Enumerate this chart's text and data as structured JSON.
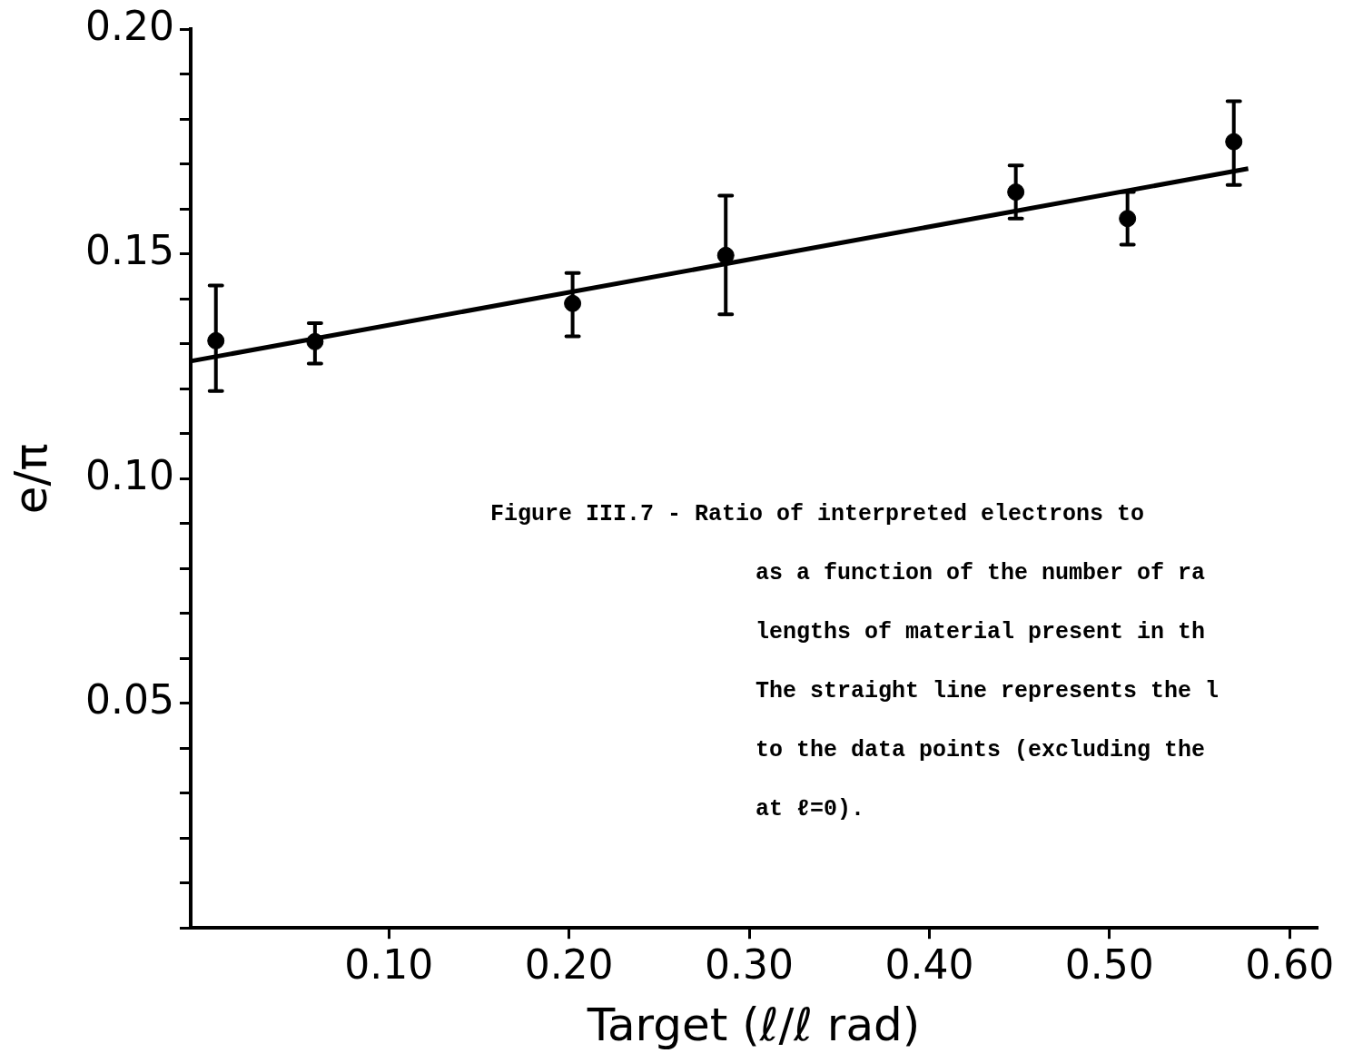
{
  "chart_data": {
    "type": "scatter",
    "xlabel": "Target (ℓ/ℓ rad)",
    "ylabel": "e/π",
    "xlim": [
      -0.01,
      0.615
    ],
    "ylim": [
      0,
      0.2
    ],
    "xticks": [
      {
        "value": 0.1,
        "label": "0.10"
      },
      {
        "value": 0.2,
        "label": "0.20"
      },
      {
        "value": 0.3,
        "label": "0.30"
      },
      {
        "value": 0.4,
        "label": "0.40"
      },
      {
        "value": 0.5,
        "label": "0.50"
      },
      {
        "value": 0.6,
        "label": "0.60"
      }
    ],
    "yticks": [
      {
        "value": 0,
        "label": null
      },
      {
        "value": 0.01,
        "label": null
      },
      {
        "value": 0.02,
        "label": null
      },
      {
        "value": 0.03,
        "label": null
      },
      {
        "value": 0.04,
        "label": null
      },
      {
        "value": 0.05,
        "label": "0.05"
      },
      {
        "value": 0.06,
        "label": null
      },
      {
        "value": 0.07,
        "label": null
      },
      {
        "value": 0.08,
        "label": null
      },
      {
        "value": 0.09,
        "label": null
      },
      {
        "value": 0.1,
        "label": "0.10"
      },
      {
        "value": 0.11,
        "label": null
      },
      {
        "value": 0.12,
        "label": null
      },
      {
        "value": 0.13,
        "label": null
      },
      {
        "value": 0.14,
        "label": null
      },
      {
        "value": 0.15,
        "label": "0.15"
      },
      {
        "value": 0.16,
        "label": null
      },
      {
        "value": 0.17,
        "label": null
      },
      {
        "value": 0.18,
        "label": null
      },
      {
        "value": 0.19,
        "label": null
      },
      {
        "value": 0.2,
        "label": "0.20"
      }
    ],
    "grid": false,
    "legend": false,
    "series": [
      {
        "color": "#000000",
        "marker": "circle",
        "x": [
          0.004,
          0.059,
          0.202,
          0.287,
          0.448,
          0.51,
          0.569
        ],
        "values": [
          0.1307,
          0.1305,
          0.139,
          0.1497,
          0.1638,
          0.1579,
          0.175
        ],
        "errors": [
          [
            0.1195,
            0.143
          ],
          [
            0.1256,
            0.1346
          ],
          [
            0.1317,
            0.1458
          ],
          [
            0.1366,
            0.163
          ],
          [
            0.1579,
            0.1697
          ],
          [
            0.1521,
            0.1638
          ],
          [
            0.1654,
            0.184
          ]
        ]
      },
      {
        "type": "line",
        "color": "#000000",
        "marker": "none",
        "line_style": "solid",
        "x": [
          -0.0094,
          0.577
        ],
        "values": [
          0.1262,
          0.169
        ]
      }
    ],
    "annotations": [
      "Figure III.7 - Ratio of interpreted electrons to",
      "as a function of the number of ra",
      "lengths of material present in th",
      "The straight line represents the l",
      "to the data points (excluding the",
      "at ℓ=0)."
    ]
  }
}
